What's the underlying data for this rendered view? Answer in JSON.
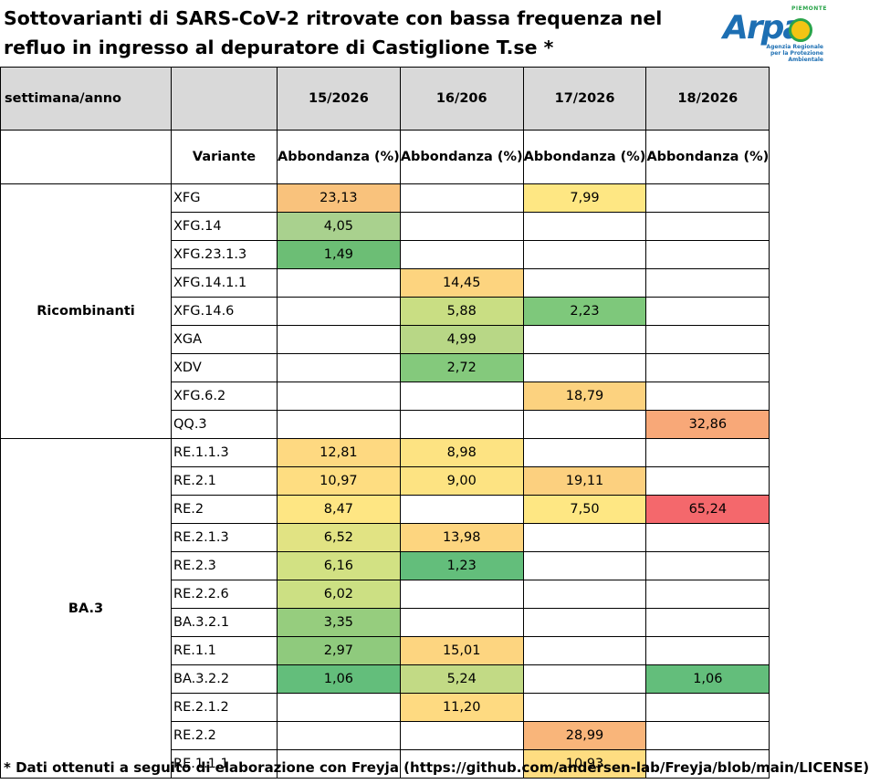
{
  "title": "Sottovarianti di SARS-CoV-2 ritrovate con bassa frequenza nel refluo in ingresso al depuratore di Castiglione T.se *",
  "logo": {
    "region": "PIEMONTE",
    "brand": "Arpa",
    "subtitle": "Agenzia Regionale per la Protezione Ambientale"
  },
  "header": {
    "col0": "settimana/anno",
    "weeks": [
      "15/2026",
      "16/206",
      "17/2026",
      "18/2026"
    ],
    "variant_label": "Variante",
    "abundance_label": "Abbondanza (%)"
  },
  "groups": [
    {
      "name": "Ricombinanti",
      "rows": [
        {
          "variant": "XFG",
          "values": [
            "23,13",
            "",
            "7,99",
            ""
          ],
          "colors": [
            "#f9c27c",
            "",
            "#fee783",
            ""
          ]
        },
        {
          "variant": "XFG.14",
          "values": [
            "4,05",
            "",
            "",
            ""
          ],
          "colors": [
            "#a9d18e",
            "",
            "",
            ""
          ]
        },
        {
          "variant": "XFG.23.1.3",
          "values": [
            "1,49",
            "",
            "",
            ""
          ],
          "colors": [
            "#6cbe75",
            "",
            "",
            ""
          ]
        },
        {
          "variant": "XFG.14.1.1",
          "values": [
            "",
            "14,45",
            "",
            ""
          ],
          "colors": [
            "",
            "#fdd47f",
            "",
            ""
          ]
        },
        {
          "variant": "XFG.14.6",
          "values": [
            "",
            "5,88",
            "2,23",
            ""
          ],
          "colors": [
            "",
            "#c9de83",
            "#7ec87b",
            ""
          ]
        },
        {
          "variant": "XGA",
          "values": [
            "",
            "4,99",
            "",
            ""
          ],
          "colors": [
            "",
            "#b8d786",
            "",
            ""
          ]
        },
        {
          "variant": "XDV",
          "values": [
            "",
            "2,72",
            "",
            ""
          ],
          "colors": [
            "",
            "#84c97c",
            "",
            ""
          ]
        },
        {
          "variant": "XFG.6.2",
          "values": [
            "",
            "",
            "18,79",
            ""
          ],
          "colors": [
            "",
            "",
            "#fcd27f",
            ""
          ]
        },
        {
          "variant": "QQ.3",
          "values": [
            "",
            "",
            "",
            "32,86"
          ],
          "colors": [
            "",
            "",
            "",
            "#f8a878"
          ]
        }
      ]
    },
    {
      "name": "BA.3",
      "rows": [
        {
          "variant": "RE.1.1.3",
          "values": [
            "12,81",
            "8,98",
            "",
            ""
          ],
          "colors": [
            "#fed981",
            "#fde382",
            "",
            ""
          ]
        },
        {
          "variant": "RE.2.1",
          "values": [
            "10,97",
            "9,00",
            "19,11",
            ""
          ],
          "colors": [
            "#fedd81",
            "#fde382",
            "#fcd07f",
            ""
          ]
        },
        {
          "variant": "RE.2",
          "values": [
            "8,47",
            "",
            "7,50",
            "65,24"
          ],
          "colors": [
            "#fee683",
            "",
            "#fee783",
            "#f4686c"
          ]
        },
        {
          "variant": "RE.2.1.3",
          "values": [
            "6,52",
            "13,98",
            "",
            ""
          ],
          "colors": [
            "#e1e383",
            "#fdd57f",
            "",
            ""
          ]
        },
        {
          "variant": "RE.2.3",
          "values": [
            "6,16",
            "1,23",
            "",
            ""
          ],
          "colors": [
            "#d2e183",
            "#63be7b",
            "",
            ""
          ]
        },
        {
          "variant": "RE.2.2.6",
          "values": [
            "6,02",
            "",
            "",
            ""
          ],
          "colors": [
            "#cce083",
            "",
            "",
            ""
          ]
        },
        {
          "variant": "BA.3.2.1",
          "values": [
            "3,35",
            "",
            "",
            ""
          ],
          "colors": [
            "#96cd7e",
            "",
            "",
            ""
          ]
        },
        {
          "variant": "RE.1.1",
          "values": [
            "2,97",
            "15,01",
            "",
            ""
          ],
          "colors": [
            "#8fca7d",
            "#fdd580",
            "",
            ""
          ]
        },
        {
          "variant": "BA.3.2.2",
          "values": [
            "1,06",
            "5,24",
            "",
            "1,06"
          ],
          "colors": [
            "#63be7b",
            "#c2da85",
            "",
            "#63be7b"
          ]
        },
        {
          "variant": "RE.2.1.2",
          "values": [
            "",
            "11,20",
            "",
            ""
          ],
          "colors": [
            "",
            "#feda81",
            "",
            ""
          ]
        },
        {
          "variant": "RE.2.2",
          "values": [
            "",
            "",
            "28,99",
            ""
          ],
          "colors": [
            "",
            "",
            "#f9b57a",
            ""
          ]
        },
        {
          "variant": "RE.1.1.1",
          "values": [
            "",
            "",
            "10,93",
            ""
          ],
          "colors": [
            "",
            "",
            "#fedd81",
            ""
          ]
        }
      ]
    }
  ],
  "footnote": "* Dati ottenuti a seguito di elaborazione con Freyja (https://github.com/andersen-lab/Freyja/blob/main/LICENSE)"
}
